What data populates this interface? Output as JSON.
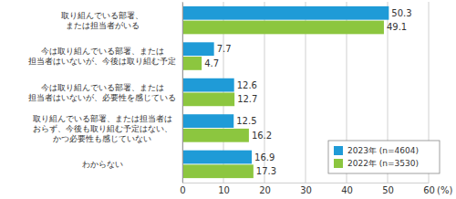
{
  "chart_data": {
    "type": "bar",
    "orientation": "horizontal",
    "categories": [
      "取り組んでいる部署、\nまたは担当者がいる",
      "今は取り組んでいる部署、または\n担当者はいないが、今後は取り組む予定",
      "今は取り組んでいる部署、または\n担当者はいないが、必要性を感じている",
      "取り組んでいる部署、または担当者は\nおらず、今後も取り組む予定はない、\nかつ必要性も感じていない",
      "わからない"
    ],
    "series": [
      {
        "name": "2023年 (n=4604)",
        "color": "#1f9bd7",
        "values": [
          50.3,
          7.7,
          12.6,
          12.5,
          16.9
        ]
      },
      {
        "name": "2022年 (n=3530)",
        "color": "#8cc63f",
        "values": [
          49.1,
          4.7,
          12.7,
          16.2,
          17.3
        ]
      }
    ],
    "x_label": "(%)",
    "xlim": [
      0,
      60
    ],
    "xticks": [
      0,
      10,
      20,
      30,
      40,
      50,
      60
    ],
    "grid": true,
    "data_labels": true,
    "legend": "lower right"
  }
}
